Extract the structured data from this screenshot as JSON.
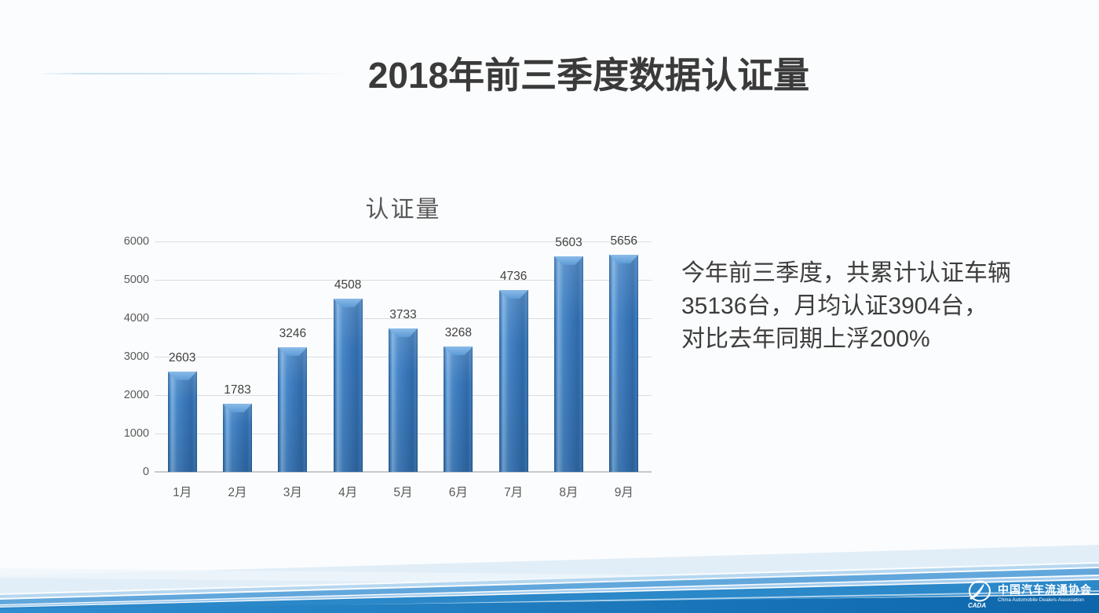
{
  "slide": {
    "title": "2018年前三季度数据认证量",
    "summary_lines": [
      "今年前三季度，共累计认证车辆",
      "35136台，月均认证3904台，",
      "对比去年同期上浮200%"
    ]
  },
  "chart_data": {
    "type": "bar",
    "title": "认证量",
    "categories": [
      "1月",
      "2月",
      "3月",
      "4月",
      "5月",
      "6月",
      "7月",
      "8月",
      "9月"
    ],
    "values": [
      2603,
      1783,
      3246,
      4508,
      3733,
      3268,
      4736,
      5603,
      5656
    ],
    "xlabel": "",
    "ylabel": "",
    "ylim": [
      0,
      6000
    ],
    "yticks": [
      0,
      1000,
      2000,
      3000,
      4000,
      5000,
      6000
    ],
    "grid": true,
    "legend": "none",
    "bar_color": "#3a78ba"
  },
  "footer": {
    "logo_text_cn": "中国汽车流通协会",
    "logo_text_en": "China Automobile Dealers Association",
    "logo_abbr": "CADA"
  },
  "palette": {
    "bar_blue": "#3a78ba",
    "bar_highlight": "#79aede",
    "bar_edge": "#24598f",
    "axis_text": "#595959",
    "value_text": "#404040",
    "title_text": "#3a3a3a",
    "footer_deep_blue": "#0d66aa",
    "footer_mid_blue": "#2b88c9",
    "footer_light_blue": "#dcebf7"
  }
}
